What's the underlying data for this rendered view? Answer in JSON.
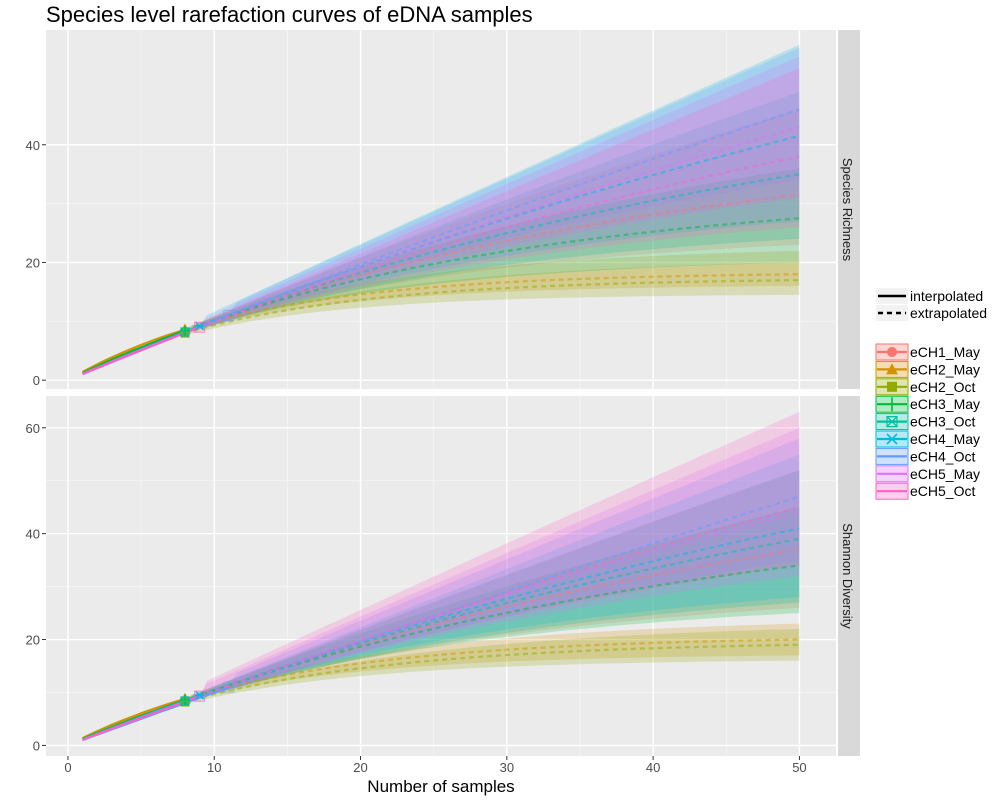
{
  "chart_data": {
    "type": "line",
    "title": "Species level rarefaction curves of eDNA samples",
    "xlabel": "Number of samples",
    "xlim": [
      -1.5,
      52.5
    ],
    "xticks": [
      0,
      10,
      20,
      30,
      40,
      50
    ],
    "legend_position": "right",
    "grid": true,
    "line_types": [
      "interpolated",
      "extrapolated"
    ],
    "panels": [
      {
        "name": "Species Richness",
        "ylim": [
          -1.5,
          59.5
        ],
        "yticks": [
          0,
          20,
          40
        ],
        "series": [
          {
            "name": "eCH1_May",
            "color": "#F8766D",
            "marker": "circle",
            "observed_x": 8,
            "observed_y": 8.3,
            "end_y": 31.5,
            "lower_end": 23.0,
            "upper_end": 46.0
          },
          {
            "name": "eCH2_May",
            "color": "#D39200",
            "marker": "triangle",
            "observed_x": 8,
            "observed_y": 8.6,
            "end_y": 18.0,
            "lower_end": 16.0,
            "upper_end": 22.0
          },
          {
            "name": "eCH2_Oct",
            "color": "#93AA00",
            "marker": "square",
            "observed_x": 8,
            "observed_y": 8.0,
            "end_y": 17.0,
            "lower_end": 14.5,
            "upper_end": 20.0
          },
          {
            "name": "eCH3_May",
            "color": "#00BA38",
            "marker": "plus",
            "observed_x": 8,
            "observed_y": 8.4,
            "end_y": 27.5,
            "lower_end": 20.0,
            "upper_end": 36.0
          },
          {
            "name": "eCH3_Oct",
            "color": "#00C19F",
            "marker": "box-x",
            "observed_x": 8,
            "observed_y": 8.2,
            "end_y": 35.0,
            "lower_end": 24.0,
            "upper_end": 49.0
          },
          {
            "name": "eCH4_May",
            "color": "#00B9E3",
            "marker": "asterisk",
            "observed_x": 9,
            "observed_y": 9.2,
            "end_y": 41.5,
            "lower_end": 27.0,
            "upper_end": 57.0
          },
          {
            "name": "eCH4_Oct",
            "color": "#619CFF",
            "marker": "none",
            "observed_x": 11,
            "observed_y": 11.0,
            "end_y": 46.0,
            "lower_end": 34.0,
            "upper_end": 56.5
          },
          {
            "name": "eCH5_May",
            "color": "#DB72FB",
            "marker": "none",
            "observed_x": 9,
            "observed_y": 9.0,
            "end_y": 43.0,
            "lower_end": 31.0,
            "upper_end": 55.0
          },
          {
            "name": "eCH5_Oct",
            "color": "#FF61C3",
            "marker": "none",
            "observed_x": 9,
            "observed_y": 9.0,
            "end_y": 38.0,
            "lower_end": 26.0,
            "upper_end": 53.0
          }
        ]
      },
      {
        "name": "Shannon Diversity",
        "ylim": [
          -2,
          66
        ],
        "yticks": [
          0,
          20,
          40,
          60
        ],
        "series": [
          {
            "name": "eCH1_May",
            "color": "#F8766D",
            "marker": "circle",
            "observed_x": 8,
            "observed_y": 8.5,
            "end_y": 37.0,
            "lower_end": 26.0,
            "upper_end": 52.0
          },
          {
            "name": "eCH2_May",
            "color": "#D39200",
            "marker": "triangle",
            "observed_x": 8,
            "observed_y": 8.8,
            "end_y": 20.0,
            "lower_end": 17.0,
            "upper_end": 23.0
          },
          {
            "name": "eCH2_Oct",
            "color": "#93AA00",
            "marker": "square",
            "observed_x": 8,
            "observed_y": 8.2,
            "end_y": 19.0,
            "lower_end": 16.0,
            "upper_end": 22.0
          },
          {
            "name": "eCH3_May",
            "color": "#00BA38",
            "marker": "plus",
            "observed_x": 8,
            "observed_y": 8.6,
            "end_y": 34.0,
            "lower_end": 25.0,
            "upper_end": 45.0
          },
          {
            "name": "eCH3_Oct",
            "color": "#00C19F",
            "marker": "box-x",
            "observed_x": 8,
            "observed_y": 8.4,
            "end_y": 39.0,
            "lower_end": 27.0,
            "upper_end": 52.0
          },
          {
            "name": "eCH4_May",
            "color": "#00B9E3",
            "marker": "asterisk",
            "observed_x": 9,
            "observed_y": 9.5,
            "end_y": 41.0,
            "lower_end": 28.0,
            "upper_end": 55.0
          },
          {
            "name": "eCH4_Oct",
            "color": "#619CFF",
            "marker": "none",
            "observed_x": 11,
            "observed_y": 11.0,
            "end_y": 47.0,
            "lower_end": 35.0,
            "upper_end": 58.0
          },
          {
            "name": "eCH5_May",
            "color": "#DB72FB",
            "marker": "none",
            "observed_x": 9,
            "observed_y": 9.3,
            "end_y": 44.0,
            "lower_end": 32.0,
            "upper_end": 60.0
          },
          {
            "name": "eCH5_Oct",
            "color": "#FF61C3",
            "marker": "none",
            "observed_x": 9,
            "observed_y": 9.3,
            "end_y": 45.0,
            "lower_end": 34.0,
            "upper_end": 63.0
          }
        ]
      }
    ]
  }
}
